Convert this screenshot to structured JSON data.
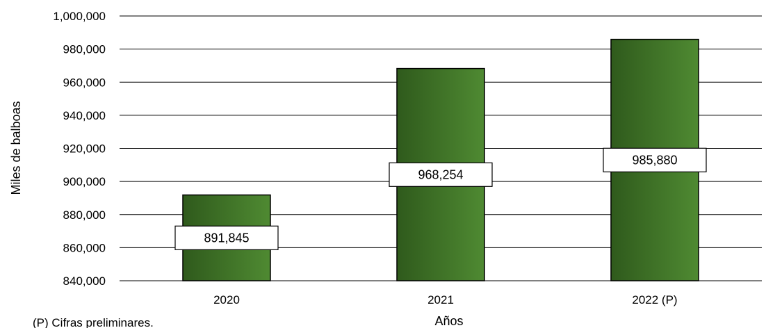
{
  "chart_data": {
    "type": "bar",
    "categories": [
      "2020",
      "2021",
      "2022 (P)"
    ],
    "values": [
      891845,
      968254,
      985880
    ],
    "data_labels": [
      "891,845",
      "968,254",
      "985,880"
    ],
    "xlabel": "Años",
    "ylabel": "Miles de balboas",
    "ylim": [
      840000,
      1000000
    ],
    "yticks": [
      840000,
      860000,
      880000,
      900000,
      920000,
      940000,
      960000,
      980000,
      1000000
    ],
    "ytick_labels": [
      "840,000",
      "860,000",
      "880,000",
      "900,000",
      "920,000",
      "940,000",
      "960,000",
      "980,000",
      "1,000,000"
    ],
    "grid": true,
    "bar_color_dark": "#2f5a1c",
    "bar_color_light": "#4f8a32"
  },
  "footnote": "(P) Cifras preliminares."
}
